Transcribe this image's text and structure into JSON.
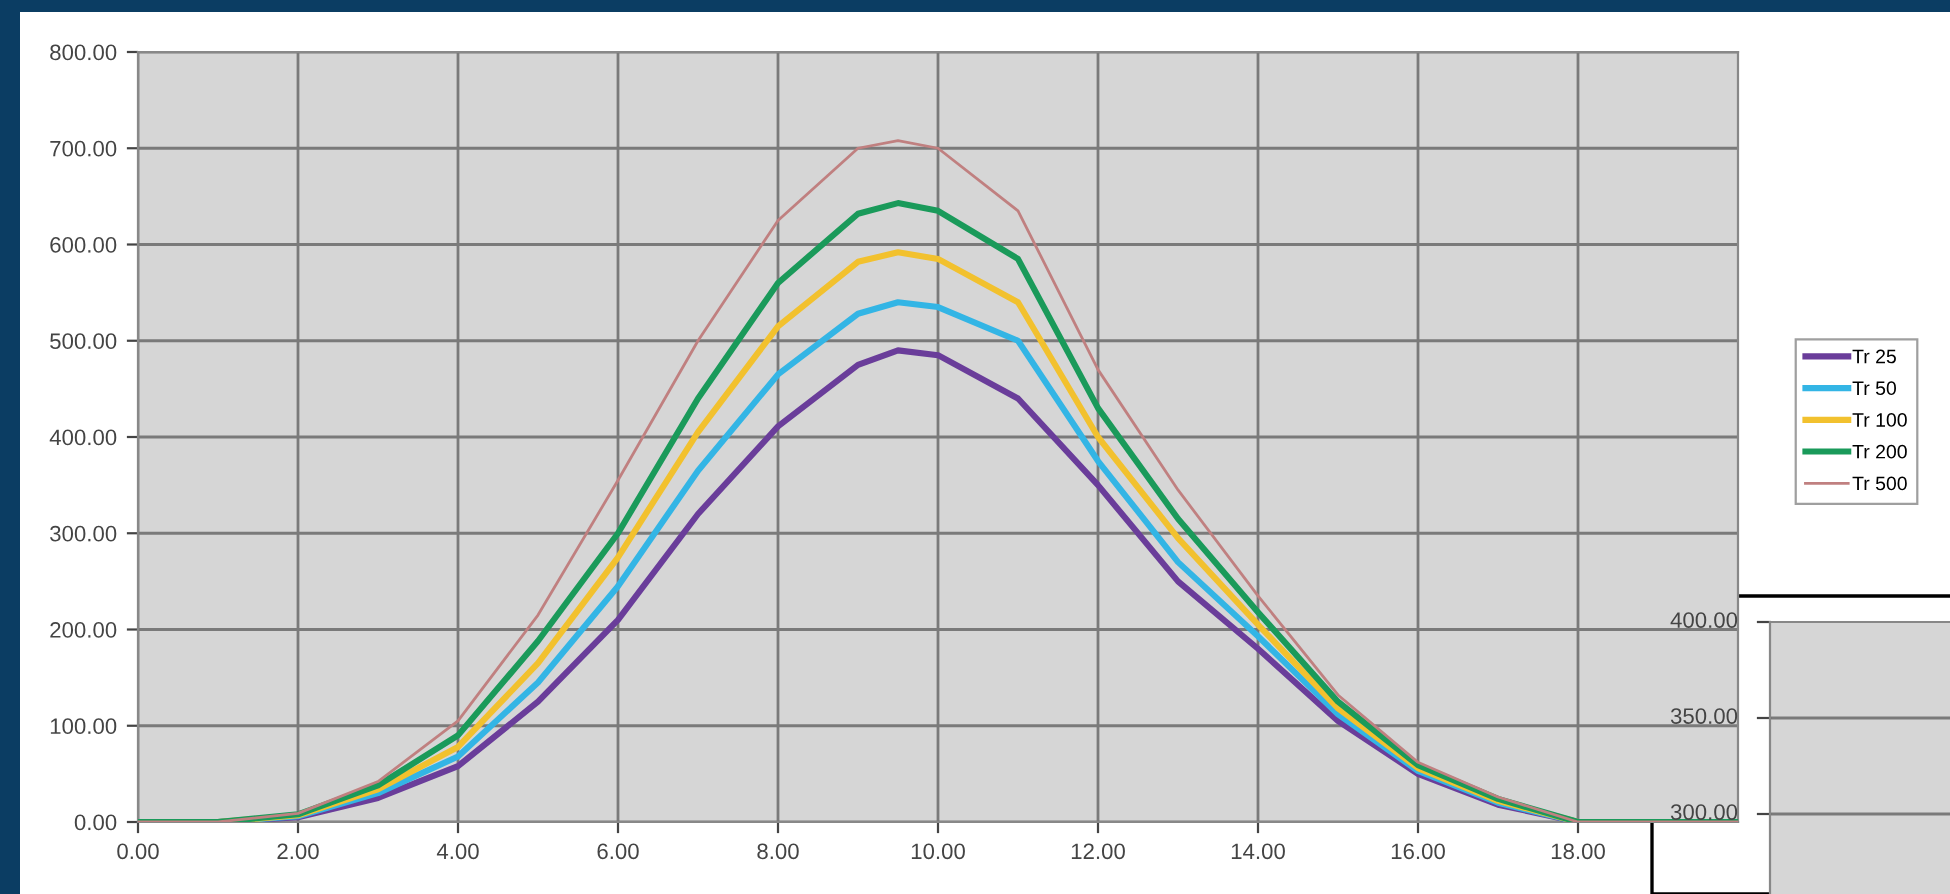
{
  "chart_data": [
    {
      "type": "line",
      "x": [
        0,
        1,
        2,
        3,
        4,
        5,
        6,
        7,
        8,
        9,
        9.5,
        10,
        11,
        12,
        13,
        14,
        15,
        16,
        17,
        18,
        19,
        20
      ],
      "series": [
        {
          "name": "Tr 25",
          "color": "#6a3d9a",
          "values": [
            0,
            0,
            5,
            25,
            58,
            125,
            210,
            320,
            411,
            475,
            490,
            485,
            440,
            350,
            250,
            180,
            105,
            50,
            18,
            0,
            0,
            0
          ]
        },
        {
          "name": "Tr 50",
          "color": "#33b5e5",
          "values": [
            0,
            0,
            6,
            30,
            68,
            145,
            245,
            365,
            465,
            528,
            540,
            535,
            500,
            375,
            270,
            193,
            112,
            53,
            20,
            0,
            0,
            0
          ]
        },
        {
          "name": "Tr 100",
          "color": "#f2c12e",
          "values": [
            0,
            0,
            7,
            34,
            78,
            165,
            275,
            405,
            515,
            582,
            592,
            585,
            540,
            400,
            295,
            205,
            118,
            56,
            22,
            0,
            0,
            0
          ]
        },
        {
          "name": "Tr 200",
          "color": "#1a9a5a",
          "values": [
            0,
            0,
            8,
            38,
            90,
            188,
            300,
            440,
            560,
            632,
            643,
            635,
            585,
            430,
            315,
            218,
            125,
            59,
            24,
            0,
            0,
            0
          ]
        },
        {
          "name": "Tr 500",
          "color": "#c08080",
          "values": [
            0,
            0,
            9,
            42,
            105,
            215,
            355,
            500,
            625,
            700,
            708,
            700,
            635,
            470,
            345,
            235,
            132,
            62,
            26,
            0,
            0,
            0
          ]
        }
      ],
      "xlim": [
        0,
        20
      ],
      "xticks": [
        {
          "value": 0,
          "label": "0.00"
        },
        {
          "value": 2,
          "label": "2.00"
        },
        {
          "value": 4,
          "label": "4.00"
        },
        {
          "value": 6,
          "label": "6.00"
        },
        {
          "value": 8,
          "label": "8.00"
        },
        {
          "value": 10,
          "label": "10.00"
        },
        {
          "value": 12,
          "label": "12.00"
        },
        {
          "value": 14,
          "label": "14.00"
        },
        {
          "value": 16,
          "label": "16.00"
        },
        {
          "value": 18,
          "label": "18.00"
        }
      ],
      "ylim": [
        0,
        800
      ],
      "yticks": [
        {
          "value": 0,
          "label": "0.00"
        },
        {
          "value": 100,
          "label": "100.00"
        },
        {
          "value": 200,
          "label": "200.00"
        },
        {
          "value": 300,
          "label": "300.00"
        },
        {
          "value": 400,
          "label": "400.00"
        },
        {
          "value": 500,
          "label": "500.00"
        },
        {
          "value": 600,
          "label": "600.00"
        },
        {
          "value": 700,
          "label": "700.00"
        },
        {
          "value": 800,
          "label": "800.00"
        }
      ],
      "grid": true,
      "legend": "right",
      "marker": "none",
      "line_style": "solid"
    },
    {
      "type": "other",
      "annotations": [
        "400.00",
        "350.00",
        "300.00"
      ]
    }
  ]
}
